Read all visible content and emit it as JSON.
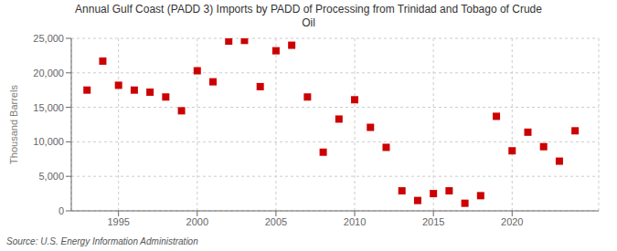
{
  "chart_data": {
    "type": "scatter",
    "title": "Annual Gulf Coast (PADD 3) Imports by PADD of Processing from Trinidad and Tobago of Crude\nOil",
    "ylabel": "Thousand Barrels",
    "annotations": [
      "Source: U.S. Energy Information Administration"
    ],
    "x": [
      1993,
      1994,
      1995,
      1996,
      1997,
      1998,
      1999,
      2000,
      2001,
      2002,
      2003,
      2004,
      2005,
      2006,
      2007,
      2008,
      2009,
      2010,
      2011,
      2012,
      2013,
      2014,
      2015,
      2016,
      2017,
      2018,
      2019,
      2020,
      2021,
      2022,
      2023,
      2024
    ],
    "values": [
      17500,
      21700,
      18200,
      17500,
      17200,
      16500,
      14500,
      20300,
      18700,
      24600,
      24700,
      18000,
      23200,
      24000,
      16500,
      8500,
      13300,
      16100,
      12100,
      9200,
      2900,
      1500,
      2500,
      2900,
      1100,
      2200,
      13700,
      8700,
      11400,
      9300,
      7200,
      11600
    ],
    "color": "#cc0000",
    "marker": "square",
    "xlim": [
      1992.0,
      2025.5
    ],
    "xticks": [
      1995,
      2000,
      2005,
      2010,
      2015,
      2020
    ],
    "ylim": [
      0,
      25000
    ],
    "yticks": [
      0,
      {
        "value": 5000,
        "label": "5,000"
      },
      {
        "value": 10000,
        "label": "10,000"
      },
      {
        "value": 15000,
        "label": "15,000"
      },
      {
        "value": 20000,
        "label": "20,000"
      },
      {
        "value": 25000,
        "label": "25,000"
      }
    ],
    "grid": true
  }
}
